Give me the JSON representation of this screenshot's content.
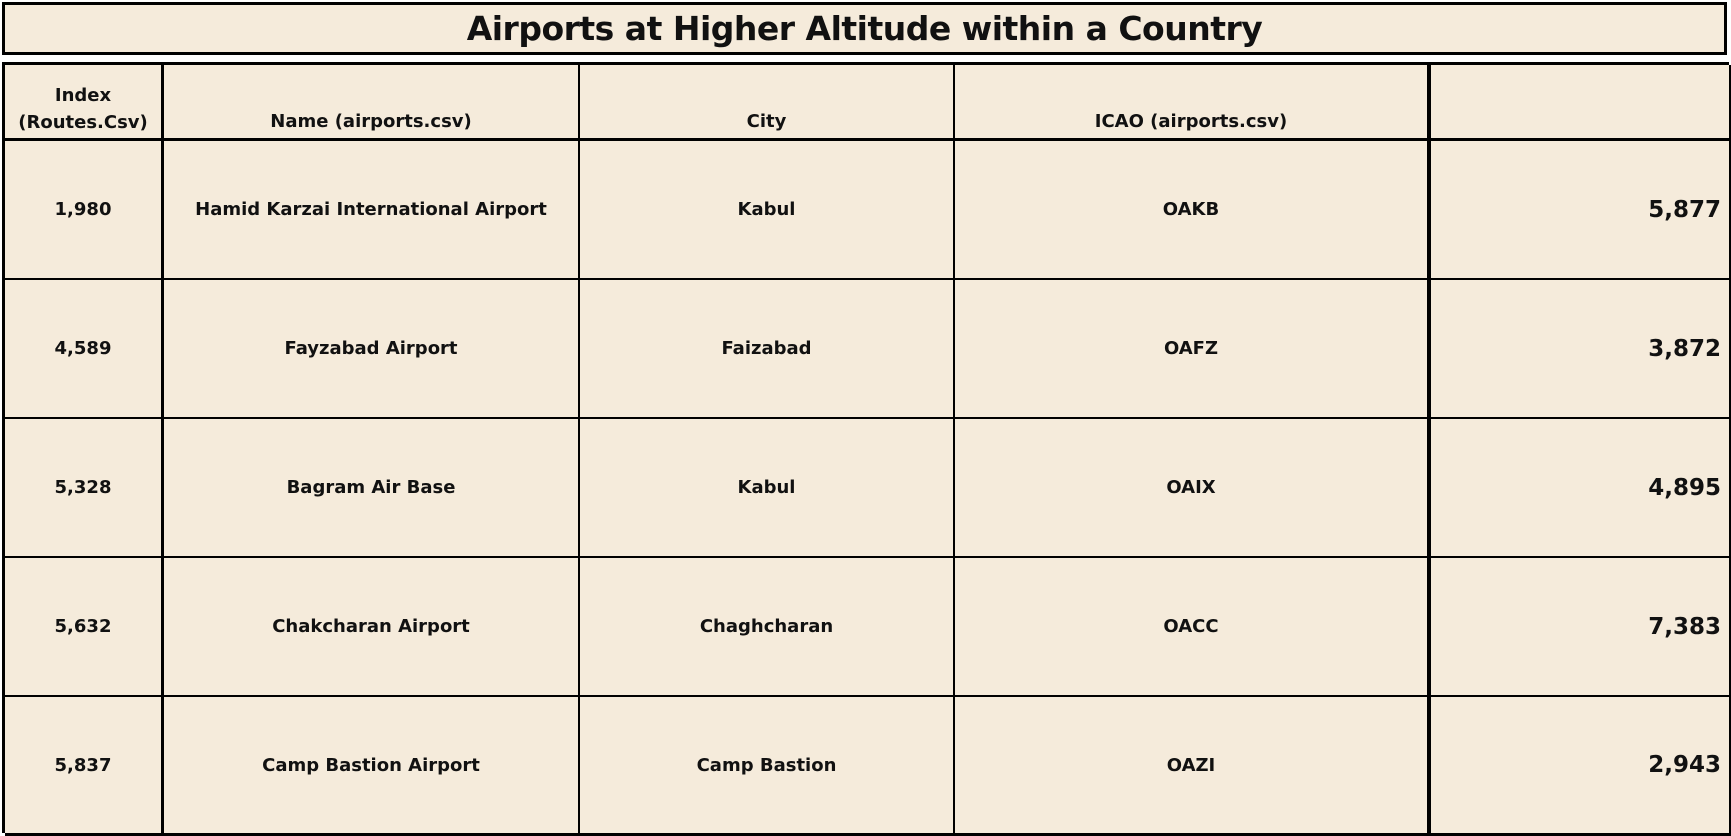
{
  "title": "Airports at Higher Altitude within a Country",
  "table": {
    "headers": [
      "Index (Routes.Csv)",
      "Name (airports.csv)",
      "City",
      "ICAO (airports.csv)",
      ""
    ],
    "rows": [
      {
        "index": "1,980",
        "name": "Hamid Karzai International Airport",
        "city": "Kabul",
        "icao": "OAKB",
        "value": "5,877"
      },
      {
        "index": "4,589",
        "name": "Fayzabad Airport",
        "city": "Faizabad",
        "icao": "OAFZ",
        "value": "3,872"
      },
      {
        "index": "5,328",
        "name": "Bagram Air Base",
        "city": "Kabul",
        "icao": "OAIX",
        "value": "4,895"
      },
      {
        "index": "5,632",
        "name": "Chakcharan Airport",
        "city": "Chaghcharan",
        "icao": "OACC",
        "value": "7,383"
      },
      {
        "index": "5,837",
        "name": "Camp Bastion Airport",
        "city": "Camp Bastion",
        "icao": "OAZI",
        "value": "2,943"
      }
    ]
  },
  "colors": {
    "background": "#f5ebdb",
    "border": "#000000",
    "text": "#111111"
  }
}
